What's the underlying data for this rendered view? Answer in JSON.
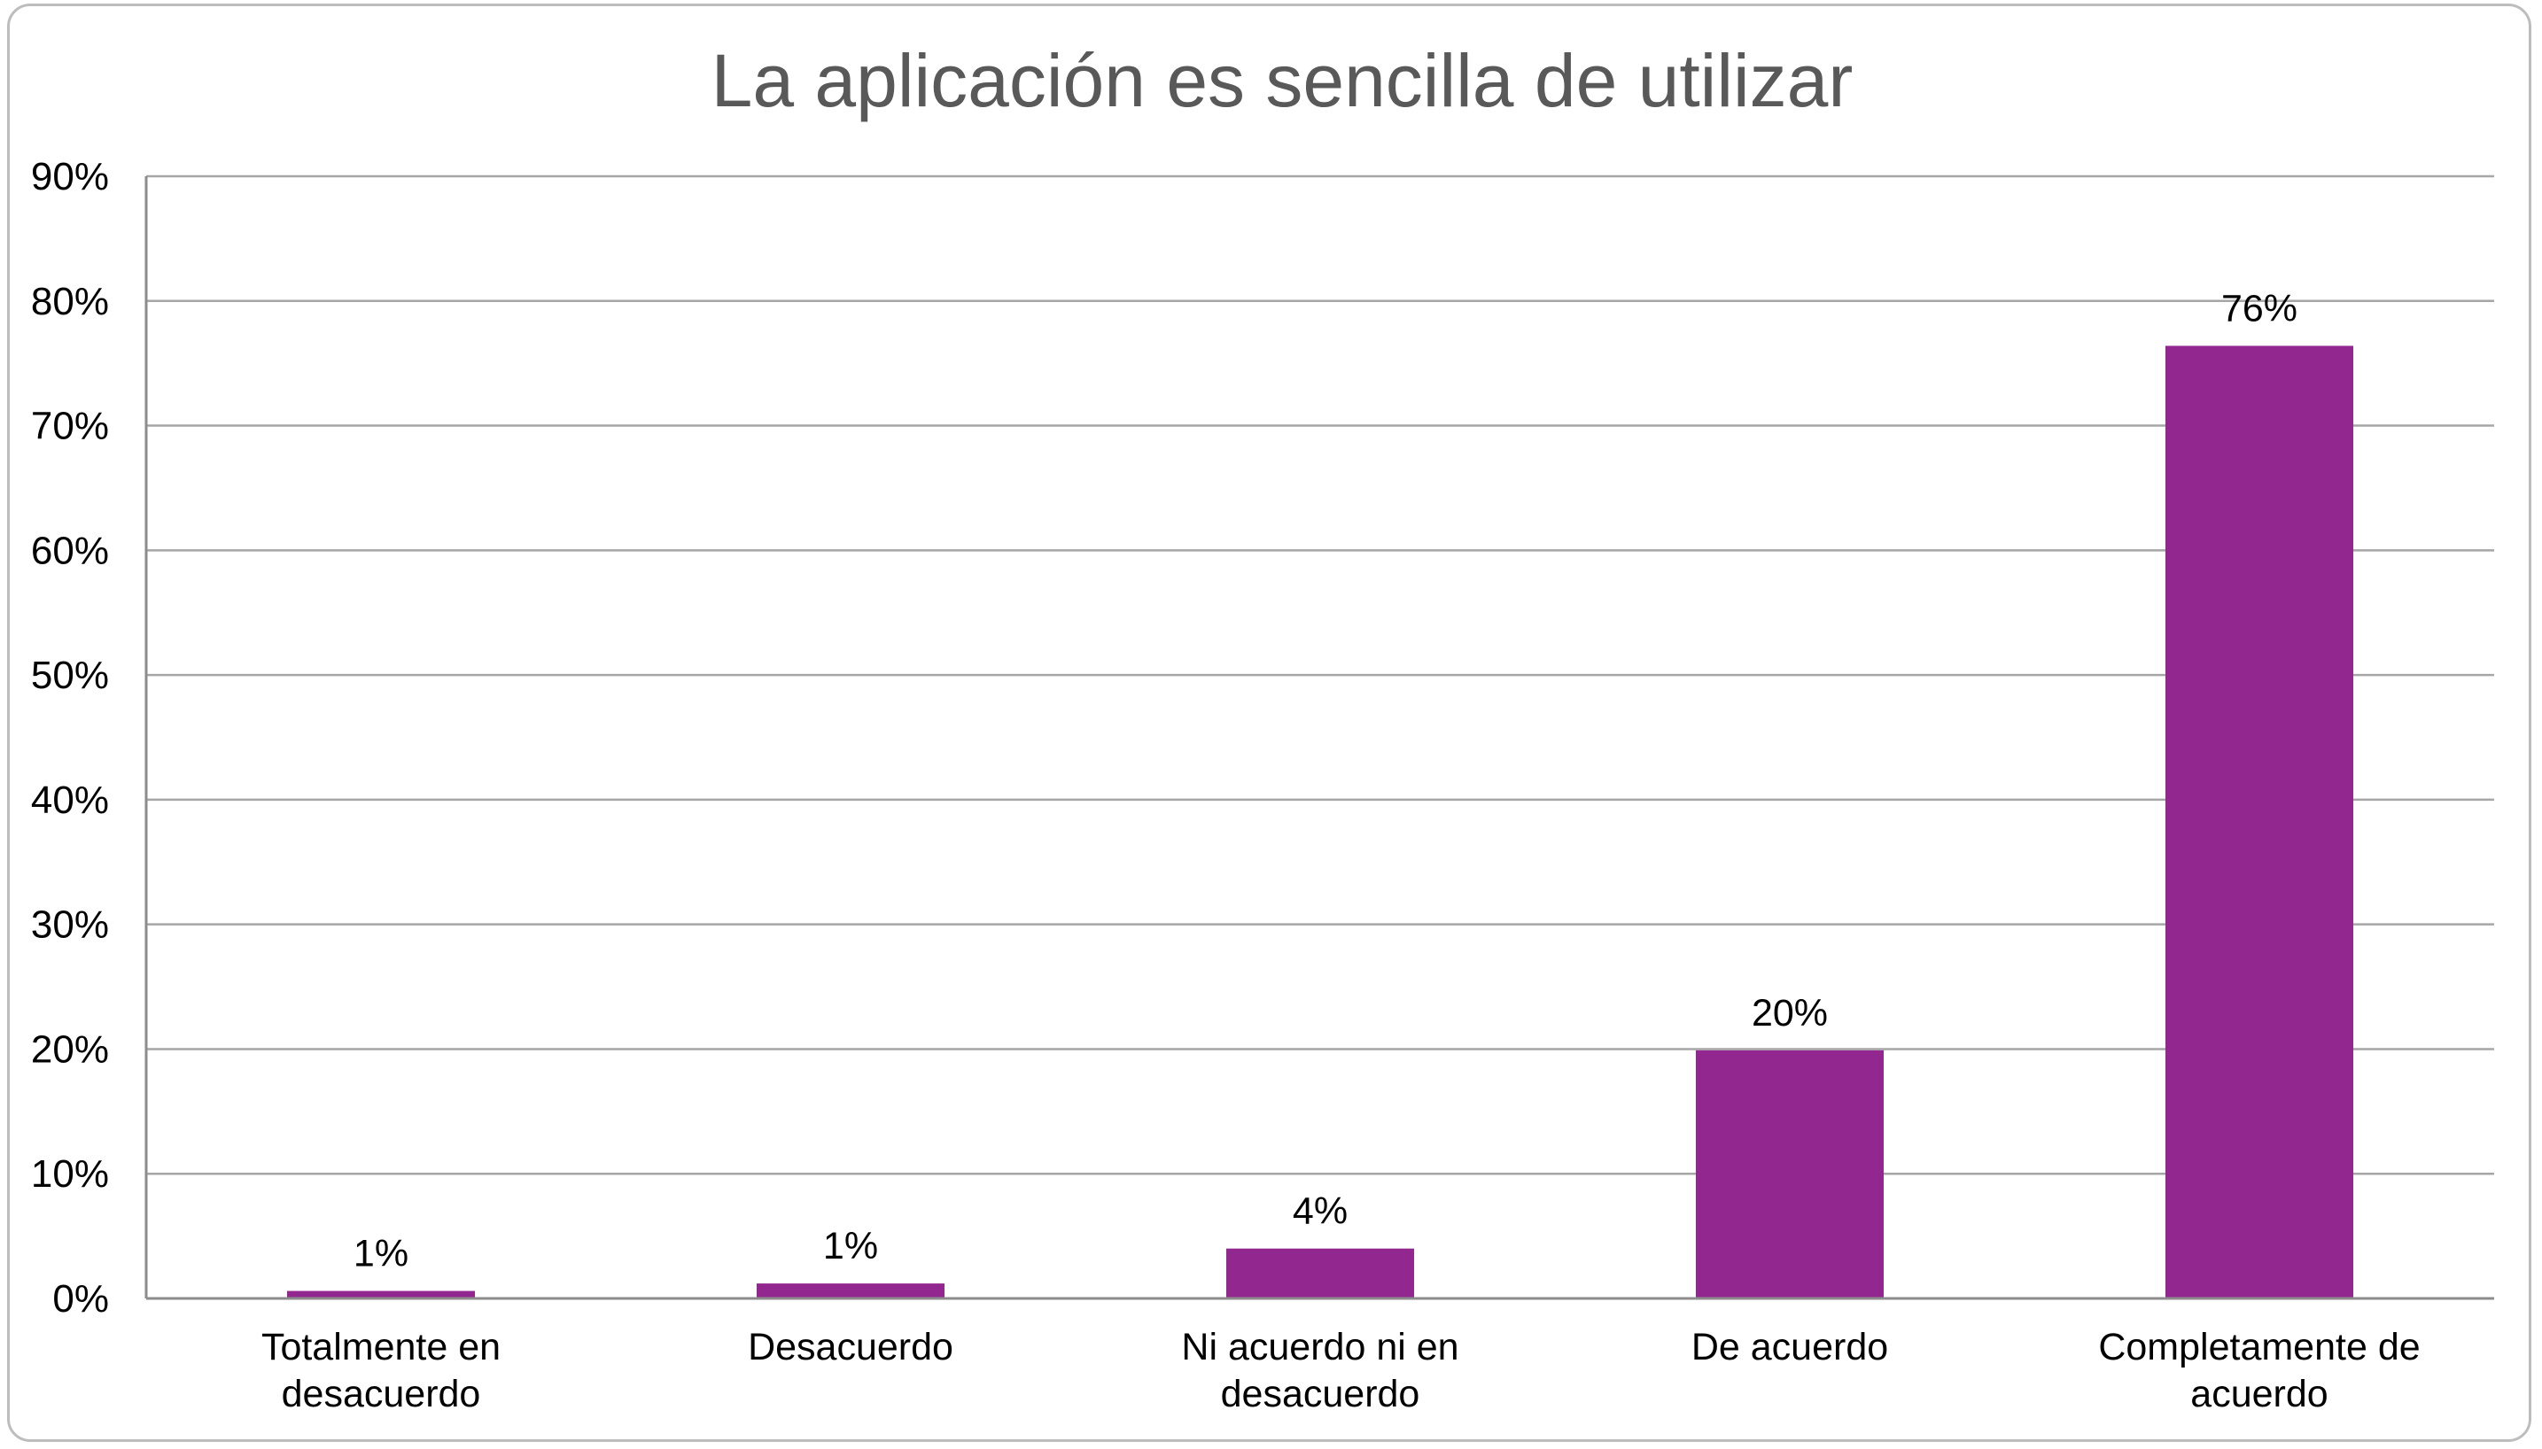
{
  "chart_data": {
    "type": "bar",
    "title": "La aplicación es sencilla de utilizar",
    "xlabel": "",
    "ylabel": "",
    "categories": [
      [
        "Totalmente en",
        "desacuerdo"
      ],
      [
        "Desacuerdo"
      ],
      [
        "Ni acuerdo ni en",
        "desacuerdo"
      ],
      [
        "De acuerdo"
      ],
      [
        "Completamente de",
        "acuerdo"
      ]
    ],
    "values": [
      0.6,
      1.2,
      4.0,
      19.9,
      76.4
    ],
    "data_labels": [
      "1%",
      "1%",
      "4%",
      "20%",
      "76%"
    ],
    "ylim": [
      0,
      90
    ],
    "yticks": [
      "0%",
      "10%",
      "20%",
      "30%",
      "40%",
      "50%",
      "60%",
      "70%",
      "80%",
      "90%"
    ],
    "grid": true,
    "legend": "none",
    "colors": {
      "bar": "#92278f",
      "grid": "#a6a6a6",
      "axis": "#8c8c8c",
      "frame": "#bdbdbd"
    }
  }
}
